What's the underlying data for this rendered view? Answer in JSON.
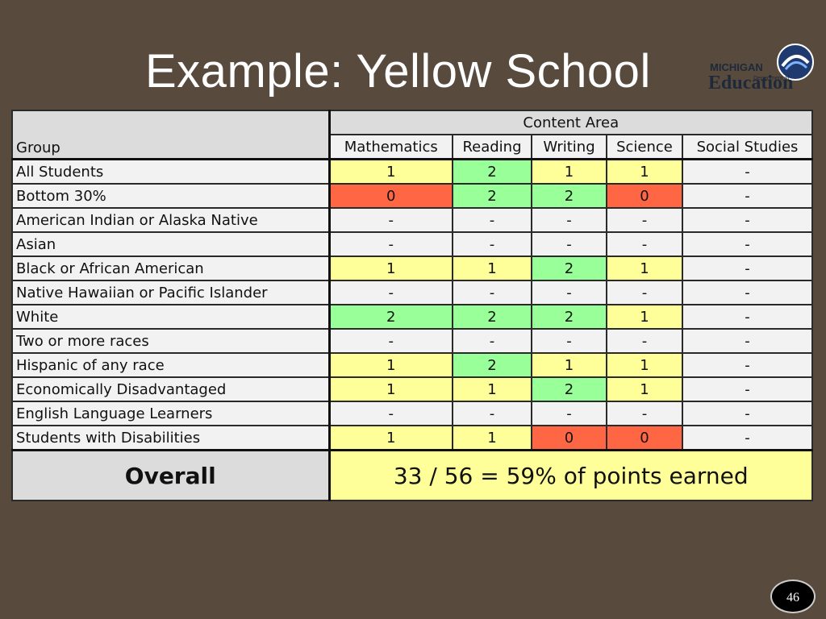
{
  "slide": {
    "title": "Example:  Yellow School",
    "page_number": "46"
  },
  "logo": {
    "michigan": "MICHIGAN",
    "department": "Department of",
    "education": "Education"
  },
  "table": {
    "group_header": "Group",
    "area_header": "Content Area",
    "columns": [
      "Mathematics",
      "Reading",
      "Writing",
      "Science",
      "Social Studies"
    ],
    "rows": [
      {
        "group": "All Students",
        "values": [
          "1",
          "2",
          "1",
          "1",
          "-"
        ],
        "colors": [
          "yellow",
          "green",
          "yellow",
          "yellow",
          "none"
        ]
      },
      {
        "group": "Bottom 30%",
        "values": [
          "0",
          "2",
          "2",
          "0",
          "-"
        ],
        "colors": [
          "red",
          "green",
          "green",
          "red",
          "none"
        ]
      },
      {
        "group": "American Indian or Alaska Native",
        "values": [
          "-",
          "-",
          "-",
          "-",
          "-"
        ],
        "colors": [
          "none",
          "none",
          "none",
          "none",
          "none"
        ]
      },
      {
        "group": "Asian",
        "values": [
          "-",
          "-",
          "-",
          "-",
          "-"
        ],
        "colors": [
          "none",
          "none",
          "none",
          "none",
          "none"
        ]
      },
      {
        "group": "Black or African American",
        "values": [
          "1",
          "1",
          "2",
          "1",
          "-"
        ],
        "colors": [
          "yellow",
          "yellow",
          "green",
          "yellow",
          "none"
        ]
      },
      {
        "group": "Native Hawaiian or Pacific Islander",
        "values": [
          "-",
          "-",
          "-",
          "-",
          "-"
        ],
        "colors": [
          "none",
          "none",
          "none",
          "none",
          "none"
        ]
      },
      {
        "group": "White",
        "values": [
          "2",
          "2",
          "2",
          "1",
          "-"
        ],
        "colors": [
          "green",
          "green",
          "green",
          "yellow",
          "none"
        ]
      },
      {
        "group": "Two or more races",
        "values": [
          "-",
          "-",
          "-",
          "-",
          "-"
        ],
        "colors": [
          "none",
          "none",
          "none",
          "none",
          "none"
        ]
      },
      {
        "group": "Hispanic of any race",
        "values": [
          "1",
          "2",
          "1",
          "1",
          "-"
        ],
        "colors": [
          "yellow",
          "green",
          "yellow",
          "yellow",
          "none"
        ]
      },
      {
        "group": "Economically Disadvantaged",
        "values": [
          "1",
          "1",
          "2",
          "1",
          "-"
        ],
        "colors": [
          "yellow",
          "yellow",
          "green",
          "yellow",
          "none"
        ]
      },
      {
        "group": "English Language Learners",
        "values": [
          "-",
          "-",
          "-",
          "-",
          "-"
        ],
        "colors": [
          "none",
          "none",
          "none",
          "none",
          "none"
        ]
      },
      {
        "group": "Students with Disabilities",
        "values": [
          "1",
          "1",
          "0",
          "0",
          "-"
        ],
        "colors": [
          "yellow",
          "yellow",
          "red",
          "red",
          "none"
        ]
      }
    ],
    "overall_label": "Overall",
    "overall_value": "33 / 56 = 59% of points earned"
  },
  "colors": {
    "background": "#584a3d",
    "yellow": "#ffff99",
    "green": "#99ff99",
    "red": "#ff6644"
  }
}
